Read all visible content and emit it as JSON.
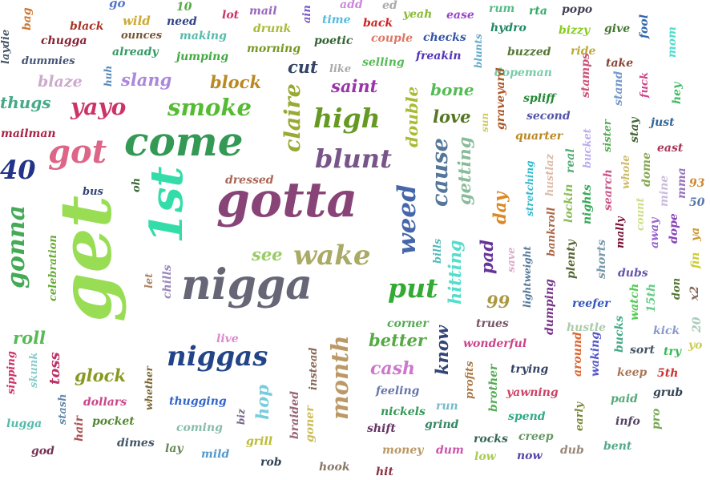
{
  "cloud": {
    "words": [
      {
        "text": "go",
        "color": "#5577cc"
      },
      {
        "text": "bag",
        "color": "#cc7733"
      },
      {
        "text": "wild",
        "color": "#ccaa33"
      },
      {
        "text": "10",
        "color": "#55aa44"
      },
      {
        "text": "lot",
        "color": "#cc3366"
      },
      {
        "text": "mail",
        "color": "#9966bb"
      },
      {
        "text": "ain",
        "color": "#7755cc"
      },
      {
        "text": "time",
        "color": "#55bbdd"
      },
      {
        "text": "add",
        "color": "#cc88dd"
      },
      {
        "text": "ed",
        "color": "#aaaaaa"
      },
      {
        "text": "yeah",
        "color": "#88bb33"
      },
      {
        "text": "ease",
        "color": "#9944cc"
      },
      {
        "text": "rum",
        "color": "#55bb88"
      },
      {
        "text": "rta",
        "color": "#33aa66"
      },
      {
        "text": "popo",
        "color": "#444455"
      },
      {
        "text": "black",
        "color": "#aa3322"
      },
      {
        "text": "ounces",
        "color": "#775533"
      },
      {
        "text": "need",
        "color": "#334488"
      },
      {
        "text": "drunk",
        "color": "#aabb33"
      },
      {
        "text": "back",
        "color": "#cc2222"
      },
      {
        "text": "hydro",
        "color": "#228866"
      },
      {
        "text": "bizzy",
        "color": "#88cc22"
      },
      {
        "text": "give",
        "color": "#447733"
      },
      {
        "text": "fool",
        "color": "#3366aa"
      },
      {
        "text": "laydie",
        "color": "#445566"
      },
      {
        "text": "chugga",
        "color": "#882233"
      },
      {
        "text": "making",
        "color": "#55bbaa"
      },
      {
        "text": "poetic",
        "color": "#336633"
      },
      {
        "text": "couple",
        "color": "#dd7766"
      },
      {
        "text": "checks",
        "color": "#3355aa"
      },
      {
        "text": "mom",
        "color": "#55ddcc"
      },
      {
        "text": "already",
        "color": "#339966"
      },
      {
        "text": "morning",
        "color": "#779922"
      },
      {
        "text": "blunts",
        "color": "#66aacc"
      },
      {
        "text": "buzzed",
        "color": "#557733"
      },
      {
        "text": "ride",
        "color": "#bbaa33"
      },
      {
        "text": "dummies",
        "color": "#445577"
      },
      {
        "text": "jumping",
        "color": "#44aa44"
      },
      {
        "text": "selling",
        "color": "#55bb55"
      },
      {
        "text": "freakin",
        "color": "#5533bb"
      },
      {
        "text": "take",
        "color": "#884433"
      },
      {
        "text": "huh",
        "color": "#5588bb"
      },
      {
        "text": "cut",
        "color": "#334466"
      },
      {
        "text": "like",
        "color": "#aaaaaa"
      },
      {
        "text": "dopeman",
        "color": "#77ccaa"
      },
      {
        "text": "blaze",
        "color": "#ccaacc"
      },
      {
        "text": "slang",
        "color": "#aa88dd"
      },
      {
        "text": "block",
        "color": "#bb8822"
      },
      {
        "text": "saint",
        "color": "#9933aa"
      },
      {
        "text": "bone",
        "color": "#55bb55"
      },
      {
        "text": "stamps",
        "color": "#cc5577"
      },
      {
        "text": "stand",
        "color": "#7799cc"
      },
      {
        "text": "fuck",
        "color": "#cc4488"
      },
      {
        "text": "hey",
        "color": "#44bb66"
      },
      {
        "text": "thugs",
        "color": "#44aa88"
      },
      {
        "text": "yayo",
        "color": "#cc3366"
      },
      {
        "text": "smoke",
        "color": "#55bb33"
      },
      {
        "text": "claire",
        "color": "#99aa33"
      },
      {
        "text": "double",
        "color": "#aabb33"
      },
      {
        "text": "graveyard",
        "color": "#aa5522"
      },
      {
        "text": "spliff",
        "color": "#228833"
      },
      {
        "text": "high",
        "color": "#669922"
      },
      {
        "text": "love",
        "color": "#557722"
      },
      {
        "text": "second",
        "color": "#5555aa"
      },
      {
        "text": "just",
        "color": "#336699"
      },
      {
        "text": "mailman",
        "color": "#aa2244"
      },
      {
        "text": "sun",
        "color": "#cccc66"
      },
      {
        "text": "quarter",
        "color": "#bb8822"
      },
      {
        "text": "sister",
        "color": "#55aa55"
      },
      {
        "text": "stay",
        "color": "#446633"
      },
      {
        "text": "come",
        "color": "#339955"
      },
      {
        "text": "got",
        "color": "#dd6688"
      },
      {
        "text": "east",
        "color": "#aa3355"
      },
      {
        "text": "blunt",
        "color": "#775588"
      },
      {
        "text": "bucket",
        "color": "#bbaaee"
      },
      {
        "text": "whole",
        "color": "#ccbb66"
      },
      {
        "text": "dome",
        "color": "#88aa55"
      },
      {
        "text": "cause",
        "color": "#557799"
      },
      {
        "text": "getting",
        "color": "#88bb99"
      },
      {
        "text": "real",
        "color": "#55aa77"
      },
      {
        "text": "search",
        "color": "#cc5588"
      },
      {
        "text": "40",
        "color": "#223388"
      },
      {
        "text": "hustlaz",
        "color": "#ddbbaa"
      },
      {
        "text": "stretching",
        "color": "#33bbcc"
      },
      {
        "text": "mine",
        "color": "#ccbbdd"
      },
      {
        "text": "mma",
        "color": "#9977bb"
      },
      {
        "text": "93",
        "color": "#cc8833"
      },
      {
        "text": "dressed",
        "color": "#aa6655"
      },
      {
        "text": "1st",
        "color": "#33ddaa"
      },
      {
        "text": "oh",
        "color": "#336633"
      },
      {
        "text": "bus",
        "color": "#334477"
      },
      {
        "text": "gotta",
        "color": "#884477"
      },
      {
        "text": "day",
        "color": "#dd8822"
      },
      {
        "text": "lockin",
        "color": "#88bb55"
      },
      {
        "text": "nights",
        "color": "#33aa55"
      },
      {
        "text": "count",
        "color": "#ccdd88"
      },
      {
        "text": "50",
        "color": "#5577aa"
      },
      {
        "text": "get",
        "color": "#99dd55"
      },
      {
        "text": "gonna",
        "color": "#44aa55"
      },
      {
        "text": "weed",
        "color": "#4466aa"
      },
      {
        "text": "bankroll",
        "color": "#aa6644"
      },
      {
        "text": "mally",
        "color": "#771133"
      },
      {
        "text": "away",
        "color": "#9966cc"
      },
      {
        "text": "dope",
        "color": "#8844bb"
      },
      {
        "text": "fin",
        "color": "#cccc33"
      },
      {
        "text": "ya",
        "color": "#cc9933"
      },
      {
        "text": "bills",
        "color": "#55bbbb"
      },
      {
        "text": "save",
        "color": "#ddaacc"
      },
      {
        "text": "plenty",
        "color": "#556633"
      },
      {
        "text": "shorts",
        "color": "#7799aa"
      },
      {
        "text": "see",
        "color": "#99cc66"
      },
      {
        "text": "wake",
        "color": "#aaaa66"
      },
      {
        "text": "pad",
        "color": "#663399"
      },
      {
        "text": "lightweight",
        "color": "#557799"
      },
      {
        "text": "celebration",
        "color": "#66aa33"
      },
      {
        "text": "let",
        "color": "#aa8866"
      },
      {
        "text": "chills",
        "color": "#9988bb"
      },
      {
        "text": "nigga",
        "color": "#666677"
      },
      {
        "text": "put",
        "color": "#33aa33"
      },
      {
        "text": "hitting",
        "color": "#55ddcc"
      },
      {
        "text": "dubs",
        "color": "#6655aa"
      },
      {
        "text": "don",
        "color": "#557733"
      },
      {
        "text": "x2",
        "color": "#886655"
      },
      {
        "text": "99",
        "color": "#aa9944"
      },
      {
        "text": "dumping",
        "color": "#773388"
      },
      {
        "text": "reefer",
        "color": "#3355bb"
      },
      {
        "text": "watch",
        "color": "#55cc55"
      },
      {
        "text": "15th",
        "color": "#66cc88"
      },
      {
        "text": "20",
        "color": "#aaccbb"
      },
      {
        "text": "corner",
        "color": "#55aa55"
      },
      {
        "text": "trues",
        "color": "#775566"
      },
      {
        "text": "hustle",
        "color": "#aaccaa"
      },
      {
        "text": "kick",
        "color": "#8899cc"
      },
      {
        "text": "roll",
        "color": "#55bb55"
      },
      {
        "text": "live",
        "color": "#dd88cc"
      },
      {
        "text": "better",
        "color": "#55aa44"
      },
      {
        "text": "wonderful",
        "color": "#cc4488"
      },
      {
        "text": "bucks",
        "color": "#44aa88"
      },
      {
        "text": "try",
        "color": "#33bb55"
      },
      {
        "text": "yo",
        "color": "#cccc55"
      },
      {
        "text": "niggas",
        "color": "#224488"
      },
      {
        "text": "sort",
        "color": "#445566"
      },
      {
        "text": "sipping",
        "color": "#cc3366"
      },
      {
        "text": "skunk",
        "color": "#88cccc"
      },
      {
        "text": "toss",
        "color": "#bb3366"
      },
      {
        "text": "month",
        "color": "#bb9966"
      },
      {
        "text": "instead",
        "color": "#886655"
      },
      {
        "text": "know",
        "color": "#334477"
      },
      {
        "text": "around",
        "color": "#dd6633"
      },
      {
        "text": "waking",
        "color": "#5555cc"
      },
      {
        "text": "keep",
        "color": "#aa7755"
      },
      {
        "text": "5th",
        "color": "#cc3333"
      },
      {
        "text": "glock",
        "color": "#889922"
      },
      {
        "text": "whether",
        "color": "#776633"
      },
      {
        "text": "cash",
        "color": "#cc77cc"
      },
      {
        "text": "trying",
        "color": "#334466"
      },
      {
        "text": "profits",
        "color": "#aa7744"
      },
      {
        "text": "brother",
        "color": "#55aa55"
      },
      {
        "text": "yawning",
        "color": "#cc4466"
      },
      {
        "text": "paid",
        "color": "#55aa77"
      },
      {
        "text": "grub",
        "color": "#334455"
      },
      {
        "text": "dollars",
        "color": "#cc4488"
      },
      {
        "text": "thugging",
        "color": "#3366cc"
      },
      {
        "text": "hop",
        "color": "#77ccdd"
      },
      {
        "text": "feeling",
        "color": "#6677aa"
      },
      {
        "text": "run",
        "color": "#77bbcc"
      },
      {
        "text": "stash",
        "color": "#6688aa"
      },
      {
        "text": "pocket",
        "color": "#558833"
      },
      {
        "text": "biz",
        "color": "#776688"
      },
      {
        "text": "braided",
        "color": "#996677"
      },
      {
        "text": "goner",
        "color": "#ccbb55"
      },
      {
        "text": "nickels",
        "color": "#339955"
      },
      {
        "text": "spend",
        "color": "#33aa88"
      },
      {
        "text": "early",
        "color": "#778833"
      },
      {
        "text": "info",
        "color": "#554466"
      },
      {
        "text": "pro",
        "color": "#77aa55"
      },
      {
        "text": "lugga",
        "color": "#55bbaa"
      },
      {
        "text": "hair",
        "color": "#aa5555"
      },
      {
        "text": "coming",
        "color": "#88bbaa"
      },
      {
        "text": "grind",
        "color": "#338866"
      },
      {
        "text": "shift",
        "color": "#663366"
      },
      {
        "text": "creep",
        "color": "#669966"
      },
      {
        "text": "dimes",
        "color": "#445566"
      },
      {
        "text": "grill",
        "color": "#bbbb33"
      },
      {
        "text": "rocks",
        "color": "#336655"
      },
      {
        "text": "bent",
        "color": "#55aa88"
      },
      {
        "text": "god",
        "color": "#773355"
      },
      {
        "text": "lay",
        "color": "#668855"
      },
      {
        "text": "mild",
        "color": "#5599cc"
      },
      {
        "text": "dum",
        "color": "#cc55aa"
      },
      {
        "text": "money",
        "color": "#bb9966"
      },
      {
        "text": "dub",
        "color": "#998877"
      },
      {
        "text": "low",
        "color": "#aacc55"
      },
      {
        "text": "now",
        "color": "#5544aa"
      },
      {
        "text": "rob",
        "color": "#334455"
      },
      {
        "text": "hook",
        "color": "#887766"
      },
      {
        "text": "hit",
        "color": "#883344"
      }
    ]
  }
}
